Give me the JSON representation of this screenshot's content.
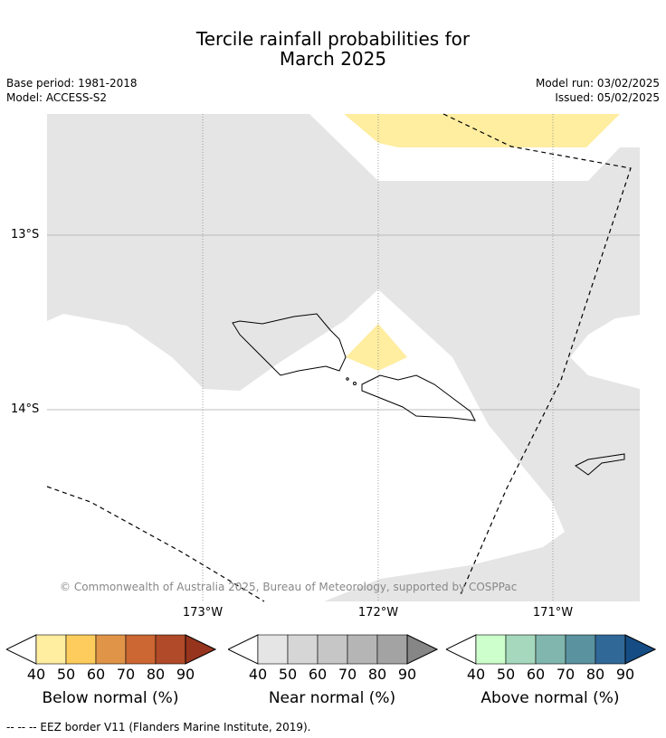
{
  "title_line1": "Tercile rainfall probabilities for",
  "title_line2": "March 2025",
  "base_period": "Base period: 1981-2018",
  "model": "Model: ACCESS-S2",
  "model_run": "Model run: 03/02/2025",
  "issued": "Issued: 05/02/2025",
  "lat_labels": [
    "13°S",
    "14°S"
  ],
  "lon_labels": [
    "173°W",
    "172°W",
    "171°W"
  ],
  "copyright": "© Commonwealth of Australia 2025, Bureau of Meteorology, supported by COSPPac",
  "footnote": "--  --  -- EEZ border V11 (Flanders Marine Institute, 2019).",
  "colorbars": [
    {
      "title": "Below normal (%)",
      "ticks": [
        "40",
        "50",
        "60",
        "70",
        "80",
        "90"
      ],
      "colors": [
        "#ffeda0",
        "#fecc5c",
        "#e09448",
        "#cc6633",
        "#b04a28",
        "#96341e"
      ]
    },
    {
      "title": "Near normal (%)",
      "ticks": [
        "40",
        "50",
        "60",
        "70",
        "80",
        "90"
      ],
      "colors": [
        "#e5e5e5",
        "#d6d6d6",
        "#c6c6c6",
        "#b5b5b5",
        "#a3a3a3",
        "#868686"
      ]
    },
    {
      "title": "Above normal (%)",
      "ticks": [
        "40",
        "50",
        "60",
        "70",
        "80",
        "90"
      ],
      "colors": [
        "#ccffcc",
        "#a5d8bc",
        "#80b6ae",
        "#5a92a0",
        "#306898",
        "#154c84"
      ]
    }
  ],
  "map_colors": {
    "near_normal": "#e5e5e5",
    "below_normal": "#ffeda0"
  }
}
